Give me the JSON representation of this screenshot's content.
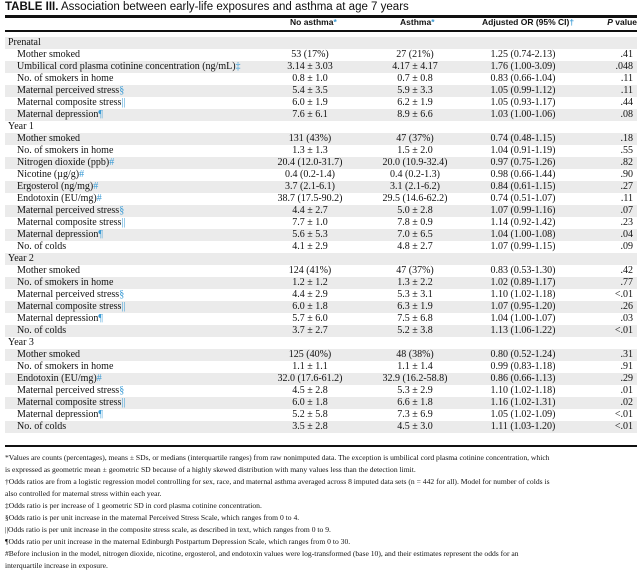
{
  "title": {
    "label": "TABLE III.",
    "text": "Association between early-life exposures and asthma at age 7 years"
  },
  "headers": {
    "no_asthma": "No asthma",
    "no_asthma_mark": "*",
    "asthma": "Asthma",
    "asthma_mark": "*",
    "or": "Adjusted OR (95% CI)",
    "or_mark": "†",
    "p_italic": "P",
    "p_rest": " value"
  },
  "colors": {
    "marker": "#3a9bd5",
    "shade": "#ebebeb"
  },
  "rows": [
    {
      "label": "Prenatal",
      "group": true
    },
    {
      "label": "Mother smoked",
      "mark": "",
      "a": "53 (17%)",
      "b": "27 (21%)",
      "or": "1.25 (0.74-2.13)",
      "p": ".41"
    },
    {
      "label": "Umbilical cord plasma cotinine concentration (ng/mL)",
      "mark": "‡",
      "a": "3.14 ± 3.03",
      "b": "4.17 ± 4.17",
      "or": "1.76 (1.00-3.09)",
      "p": ".048"
    },
    {
      "label": "No. of smokers in home",
      "mark": "",
      "a": "0.8 ± 1.0",
      "b": "0.7 ± 0.8",
      "or": "0.83 (0.66-1.04)",
      "p": ".11"
    },
    {
      "label": "Maternal perceived stress",
      "mark": "§",
      "a": "5.4 ± 3.5",
      "b": "5.9 ± 3.3",
      "or": "1.05 (0.99-1.12)",
      "p": ".11"
    },
    {
      "label": "Maternal composite stress",
      "mark": "||",
      "a": "6.0 ± 1.9",
      "b": "6.2 ± 1.9",
      "or": "1.05 (0.93-1.17)",
      "p": ".44"
    },
    {
      "label": "Maternal depression",
      "mark": "¶",
      "a": "7.6 ± 6.1",
      "b": "8.9 ± 6.6",
      "or": "1.03 (1.00-1.06)",
      "p": ".08"
    },
    {
      "label": "Year 1",
      "group": true
    },
    {
      "label": "Mother smoked",
      "mark": "",
      "a": "131 (43%)",
      "b": "47 (37%)",
      "or": "0.74 (0.48-1.15)",
      "p": ".18"
    },
    {
      "label": "No. of smokers in home",
      "mark": "",
      "a": "1.3 ± 1.3",
      "b": "1.5 ± 2.0",
      "or": "1.04 (0.91-1.19)",
      "p": ".55"
    },
    {
      "label": "Nitrogen dioxide (ppb)",
      "mark": "#",
      "a": "20.4 (12.0-31.7)",
      "b": "20.0 (10.9-32.4)",
      "or": "0.97 (0.75-1.26)",
      "p": ".82"
    },
    {
      "label": "Nicotine (µg/g)",
      "mark": "#",
      "a": "0.4 (0.2-1.4)",
      "b": "0.4 (0.2-1.3)",
      "or": "0.98 (0.66-1.44)",
      "p": ".90"
    },
    {
      "label": "Ergosterol (ng/mg)",
      "mark": "#",
      "a": "3.7 (2.1-6.1)",
      "b": "3.1 (2.1-6.2)",
      "or": "0.84 (0.61-1.15)",
      "p": ".27"
    },
    {
      "label": "Endotoxin (EU/mg)",
      "mark": "#",
      "a": "38.7 (17.5-90.2)",
      "b": "29.5 (14.6-62.2)",
      "or": "0.74 (0.51-1.07)",
      "p": ".11"
    },
    {
      "label": "Maternal perceived stress",
      "mark": "§",
      "a": "4.4 ± 2.7",
      "b": "5.0 ± 2.8",
      "or": "1.07 (0.99-1.16)",
      "p": ".07"
    },
    {
      "label": "Maternal composite stress",
      "mark": "||",
      "a": "7.7 ± 1.0",
      "b": "7.8 ± 0.9",
      "or": "1.14 (0.92-1.42)",
      "p": ".23"
    },
    {
      "label": "Maternal depression",
      "mark": "¶",
      "a": "5.6 ± 5.3",
      "b": "7.0 ± 6.5",
      "or": "1.04 (1.00-1.08)",
      "p": ".04"
    },
    {
      "label": "No. of colds",
      "mark": "",
      "a": "4.1 ± 2.9",
      "b": "4.8 ± 2.7",
      "or": "1.07 (0.99-1.15)",
      "p": ".09"
    },
    {
      "label": "Year 2",
      "group": true
    },
    {
      "label": "Mother smoked",
      "mark": "",
      "a": "124 (41%)",
      "b": "47 (37%)",
      "or": "0.83 (0.53-1.30)",
      "p": ".42"
    },
    {
      "label": "No. of smokers in home",
      "mark": "",
      "a": "1.2 ± 1.2",
      "b": "1.3 ± 2.2",
      "or": "1.02 (0.89-1.17)",
      "p": ".77"
    },
    {
      "label": "Maternal perceived stress",
      "mark": "§",
      "a": "4.4 ± 2.9",
      "b": "5.3 ± 3.1",
      "or": "1.10 (1.02-1.18)",
      "p": "<.01"
    },
    {
      "label": "Maternal composite stress",
      "mark": "||",
      "a": "6.0 ± 1.8",
      "b": "6.3 ± 1.9",
      "or": "1.07 (0.95-1.20)",
      "p": ".26"
    },
    {
      "label": "Maternal depression",
      "mark": "¶",
      "a": "5.7 ± 6.0",
      "b": "7.5 ± 6.8",
      "or": "1.04 (1.00-1.07)",
      "p": ".03"
    },
    {
      "label": "No. of colds",
      "mark": "",
      "a": "3.7 ± 2.7",
      "b": "5.2 ± 3.8",
      "or": "1.13 (1.06-1.22)",
      "p": "<.01"
    },
    {
      "label": "Year 3",
      "group": true
    },
    {
      "label": "Mother smoked",
      "mark": "",
      "a": "125 (40%)",
      "b": "48 (38%)",
      "or": "0.80 (0.52-1.24)",
      "p": ".31"
    },
    {
      "label": "No. of smokers in home",
      "mark": "",
      "a": "1.1 ± 1.1",
      "b": "1.1 ± 1.4",
      "or": "0.99 (0.83-1.18)",
      "p": ".91"
    },
    {
      "label": "Endotoxin (EU/mg)",
      "mark": "#",
      "a": "32.0 (17.6-61.2)",
      "b": "32.9 (16.2-58.8)",
      "or": "0.86 (0.66-1.13)",
      "p": ".29"
    },
    {
      "label": "Maternal perceived stress",
      "mark": "§",
      "a": "4.5 ± 2.8",
      "b": "5.3 ± 2.9",
      "or": "1.10 (1.02-1.18)",
      "p": ".01"
    },
    {
      "label": "Maternal composite stress",
      "mark": "||",
      "a": "6.0 ± 1.8",
      "b": "6.6 ± 1.8",
      "or": "1.16 (1.02-1.31)",
      "p": ".02"
    },
    {
      "label": "Maternal depression",
      "mark": "¶",
      "a": "5.2 ± 5.8",
      "b": "7.3 ± 6.9",
      "or": "1.05 (1.02-1.09)",
      "p": "<.01"
    },
    {
      "label": "No. of colds",
      "mark": "",
      "a": "3.5 ± 2.8",
      "b": "4.5 ± 3.0",
      "or": "1.11 (1.03-1.20)",
      "p": "<.01"
    }
  ],
  "footnotes": [
    "*Values are counts (percentages), means ± SDs, or medians (interquartile ranges) from raw nonimputed data. The exception is umbilical cord plasma cotinine concentration, which",
    "is expressed as geometric mean ± geometric SD because of a highly skewed distribution with many values less than the detection limit.",
    "†Odds ratios are from a logistic regression model controlling for sex, race, and maternal asthma averaged across 8 imputed data sets (n = 442 for all). Model for number of colds is",
    "also controlled for maternal stress within each year.",
    "‡Odds ratio is per increase of 1 geometric SD in cord plasma cotinine concentration.",
    "§Odds ratio is per unit increase in the maternal Perceived Stress Scale, which ranges from 0 to 4.",
    "||Odds ratio is per unit increase in the composite stress scale, as described in text, which ranges from 0 to 9.",
    "¶Odds ratio per unit increase in the maternal Edinburgh Postpartum Depression Scale, which ranges from 0 to 30.",
    "#Before inclusion in the model, nitrogen dioxide, nicotine, ergosterol, and endotoxin values were log-transformed (base 10), and their estimates represent the odds for an",
    "interquartile increase in exposure."
  ]
}
